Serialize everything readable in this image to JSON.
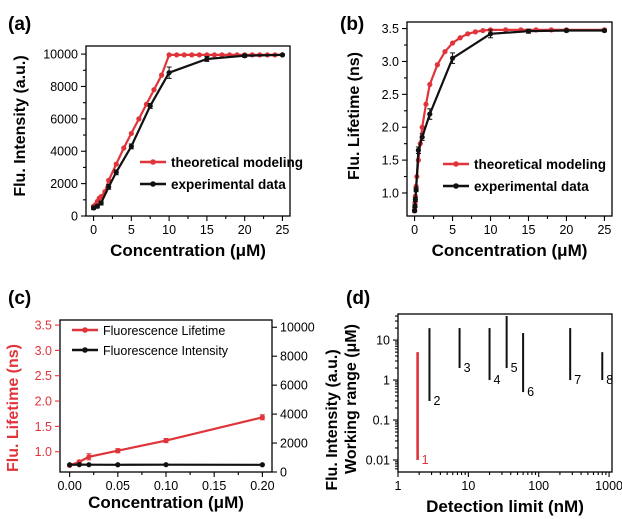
{
  "colors": {
    "red": "#e0343b",
    "black": "#111111"
  },
  "chart_data": [
    {
      "id": "a",
      "panel_label": "(a)",
      "type": "line",
      "xlabel": "Concentration (μM)",
      "ylabel": "Flu. Intensity (a.u.)",
      "xlim": [
        -1,
        26
      ],
      "ylim": [
        0,
        10500
      ],
      "xticks": [
        0,
        5,
        10,
        15,
        20,
        25
      ],
      "yticks": [
        0,
        2000,
        4000,
        6000,
        8000,
        10000
      ],
      "legend": "lower-right",
      "series": [
        {
          "name": "theoretical modeling",
          "color": "red",
          "x": [
            0,
            0.25,
            0.5,
            0.75,
            1,
            1.5,
            2,
            3,
            4,
            5,
            6,
            7,
            8,
            9,
            10,
            11,
            12,
            13,
            14,
            15,
            16,
            17,
            18,
            19,
            20,
            21,
            22,
            23,
            24,
            25
          ],
          "y": [
            600,
            700,
            900,
            1100,
            1200,
            1500,
            2200,
            3200,
            4200,
            5100,
            6000,
            6900,
            7800,
            8700,
            9950,
            9950,
            9950,
            9950,
            9950,
            9950,
            9950,
            9950,
            9950,
            9950,
            9950,
            9950,
            9950,
            9950,
            9950,
            9950
          ]
        },
        {
          "name": "experimental data",
          "color": "black",
          "x": [
            0,
            0.5,
            1,
            2,
            3,
            5,
            7.5,
            10,
            15,
            20,
            25
          ],
          "y": [
            500,
            600,
            800,
            1800,
            2700,
            4300,
            6800,
            8850,
            9700,
            9900,
            9950
          ],
          "err": [
            100,
            100,
            120,
            150,
            150,
            150,
            150,
            350,
            150,
            100,
            50
          ]
        }
      ]
    },
    {
      "id": "b",
      "panel_label": "(b)",
      "type": "line",
      "xlabel": "Concentration (μM)",
      "ylabel": "Flu. Lifetime (ns)",
      "xlim": [
        -1,
        26
      ],
      "ylim": [
        0.65,
        3.6
      ],
      "xticks": [
        0,
        5,
        10,
        15,
        20,
        25
      ],
      "yticks": [
        1.0,
        1.5,
        2.0,
        2.5,
        3.0,
        3.5
      ],
      "legend": "lower-right",
      "series": [
        {
          "name": "theoretical modeling",
          "color": "red",
          "x": [
            0,
            0.02,
            0.05,
            0.1,
            0.2,
            0.3,
            0.5,
            0.75,
            1,
            1.5,
            2,
            3,
            4,
            5,
            6,
            7,
            8,
            9,
            10,
            12,
            14,
            16,
            18,
            20,
            25
          ],
          "y": [
            0.73,
            0.78,
            0.85,
            0.95,
            1.1,
            1.25,
            1.5,
            1.75,
            2.0,
            2.35,
            2.65,
            2.95,
            3.15,
            3.28,
            3.36,
            3.42,
            3.45,
            3.47,
            3.48,
            3.48,
            3.48,
            3.48,
            3.48,
            3.48,
            3.48
          ]
        },
        {
          "name": "experimental data",
          "color": "black",
          "x": [
            0,
            0.05,
            0.1,
            0.2,
            0.5,
            1,
            2,
            5,
            10,
            15,
            20,
            25
          ],
          "y": [
            0.73,
            0.8,
            0.9,
            1.05,
            1.65,
            1.85,
            2.2,
            3.05,
            3.42,
            3.46,
            3.47,
            3.47
          ],
          "err": [
            0.02,
            0.02,
            0.03,
            0.03,
            0.05,
            0.05,
            0.08,
            0.08,
            0.06,
            0.03,
            0.02,
            0.02
          ]
        }
      ]
    },
    {
      "id": "c",
      "panel_label": "(c)",
      "type": "line",
      "xlabel": "Concentration (μM)",
      "ylabel_left": "Flu. Lifetime (ns)",
      "ylabel_right": "Flu. Intensity (a.u.)",
      "xlim": [
        -0.01,
        0.21
      ],
      "ylim_left": [
        0.6,
        3.6
      ],
      "ylim_right": [
        0,
        10500
      ],
      "xticks": [
        "0.00",
        "0.05",
        "0.10",
        "0.15",
        "0.20"
      ],
      "yticks_left": [
        "1.0",
        "1.5",
        "2.0",
        "2.5",
        "3.0",
        "3.5"
      ],
      "yticks_right": [
        "0",
        "2000",
        "4000",
        "6000",
        "8000",
        "10000"
      ],
      "legend": "top-left",
      "series": [
        {
          "name": "Fluorescence Lifetime",
          "color": "red",
          "axis": "left",
          "x": [
            0,
            0.01,
            0.02,
            0.05,
            0.1,
            0.2
          ],
          "y": [
            0.73,
            0.8,
            0.9,
            1.02,
            1.22,
            1.68
          ],
          "err": [
            0.02,
            0.03,
            0.06,
            0.04,
            0.04,
            0.05
          ]
        },
        {
          "name": "Fluorescence Intensity",
          "color": "black",
          "axis": "right",
          "x": [
            0,
            0.01,
            0.02,
            0.05,
            0.1,
            0.2
          ],
          "y": [
            500,
            510,
            505,
            500,
            505,
            500
          ]
        }
      ]
    },
    {
      "id": "d",
      "panel_label": "(d)",
      "type": "range",
      "xlabel": "Detection limit (nM)",
      "ylabel": "Working range (μM)",
      "xscale": "log",
      "yscale": "log",
      "xlim": [
        1,
        1100
      ],
      "ylim": [
        0.005,
        45
      ],
      "xticks": [
        "1",
        "10",
        "100",
        "1000"
      ],
      "yticks": [
        "0.01",
        "0.1",
        "1",
        "10"
      ],
      "ranges": [
        {
          "label": "1",
          "x": 1.9,
          "y_low": 0.01,
          "y_high": 5,
          "color": "red"
        },
        {
          "label": "2",
          "x": 2.8,
          "y_low": 0.3,
          "y_high": 20,
          "color": "black"
        },
        {
          "label": "3",
          "x": 7.5,
          "y_low": 2,
          "y_high": 20,
          "color": "black"
        },
        {
          "label": "4",
          "x": 20,
          "y_low": 1,
          "y_high": 20,
          "color": "black"
        },
        {
          "label": "5",
          "x": 35,
          "y_low": 2,
          "y_high": 40,
          "color": "black"
        },
        {
          "label": "6",
          "x": 60,
          "y_low": 0.5,
          "y_high": 15,
          "color": "black"
        },
        {
          "label": "7",
          "x": 280,
          "y_low": 1,
          "y_high": 20,
          "color": "black"
        },
        {
          "label": "8",
          "x": 800,
          "y_low": 1,
          "y_high": 5,
          "color": "black"
        }
      ]
    }
  ]
}
